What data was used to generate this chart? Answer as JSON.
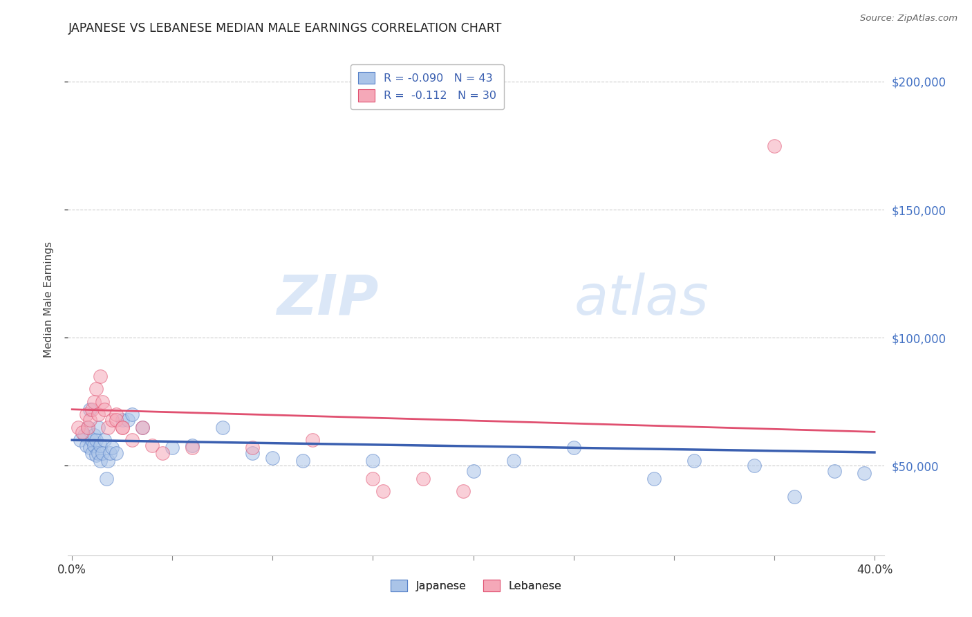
{
  "title": "JAPANESE VS LEBANESE MEDIAN MALE EARNINGS CORRELATION CHART",
  "source": "Source: ZipAtlas.com",
  "ylabel": "Median Male Earnings",
  "watermark": "ZIPatlas",
  "xlim": [
    -0.002,
    0.405
  ],
  "ylim": [
    15000,
    215000
  ],
  "xticks": [
    0.0,
    0.05,
    0.1,
    0.15,
    0.2,
    0.25,
    0.3,
    0.35,
    0.4
  ],
  "xticklabels": [
    "0.0%",
    "",
    "",
    "",
    "",
    "",
    "",
    "",
    "40.0%"
  ],
  "ytick_positions": [
    50000,
    100000,
    150000,
    200000
  ],
  "ytick_labels": [
    "$50,000",
    "$100,000",
    "$150,000",
    "$200,000"
  ],
  "legend_R_japanese": "-0.090",
  "legend_N_japanese": "43",
  "legend_R_lebanese": "-0.112",
  "legend_N_lebanese": "30",
  "japanese_color": "#aac4e8",
  "lebanese_color": "#f5a8b8",
  "japanese_edge_color": "#5580c8",
  "lebanese_edge_color": "#e05070",
  "japanese_line_color": "#3a5fb0",
  "lebanese_line_color": "#e05070",
  "title_color": "#222222",
  "source_color": "#666666",
  "axis_label_color": "#444444",
  "ytick_color": "#4472c4",
  "xtick_color": "#333333",
  "grid_color": "#cccccc",
  "background_color": "#ffffff",
  "japanese_x": [
    0.004,
    0.006,
    0.007,
    0.008,
    0.009,
    0.009,
    0.01,
    0.01,
    0.011,
    0.011,
    0.012,
    0.012,
    0.013,
    0.013,
    0.014,
    0.014,
    0.015,
    0.016,
    0.017,
    0.018,
    0.019,
    0.02,
    0.022,
    0.025,
    0.028,
    0.03,
    0.035,
    0.05,
    0.06,
    0.075,
    0.09,
    0.1,
    0.115,
    0.15,
    0.2,
    0.22,
    0.25,
    0.29,
    0.31,
    0.34,
    0.36,
    0.38,
    0.395
  ],
  "japanese_y": [
    60000,
    62000,
    58000,
    65000,
    57000,
    72000,
    60000,
    55000,
    62000,
    58000,
    54000,
    60000,
    55000,
    65000,
    58000,
    52000,
    55000,
    60000,
    45000,
    52000,
    55000,
    57000,
    55000,
    68000,
    68000,
    70000,
    65000,
    57000,
    58000,
    65000,
    55000,
    53000,
    52000,
    52000,
    48000,
    52000,
    57000,
    45000,
    52000,
    50000,
    38000,
    48000,
    47000
  ],
  "lebanese_x": [
    0.003,
    0.005,
    0.007,
    0.008,
    0.009,
    0.01,
    0.011,
    0.012,
    0.013,
    0.014,
    0.015,
    0.016,
    0.018,
    0.02,
    0.022,
    0.022,
    0.025,
    0.025,
    0.03,
    0.035,
    0.04,
    0.045,
    0.06,
    0.09,
    0.12,
    0.15,
    0.155,
    0.175,
    0.195,
    0.35
  ],
  "lebanese_y": [
    65000,
    63000,
    70000,
    65000,
    68000,
    72000,
    75000,
    80000,
    70000,
    85000,
    75000,
    72000,
    65000,
    68000,
    70000,
    68000,
    65000,
    65000,
    60000,
    65000,
    58000,
    55000,
    57000,
    57000,
    60000,
    45000,
    40000,
    45000,
    40000,
    175000
  ],
  "japanese_intercept": 60000,
  "japanese_slope": -12000,
  "lebanese_intercept": 72000,
  "lebanese_slope": -22000,
  "marker_size": 200,
  "marker_alpha": 0.55,
  "figsize": [
    14.06,
    8.92
  ],
  "dpi": 100
}
